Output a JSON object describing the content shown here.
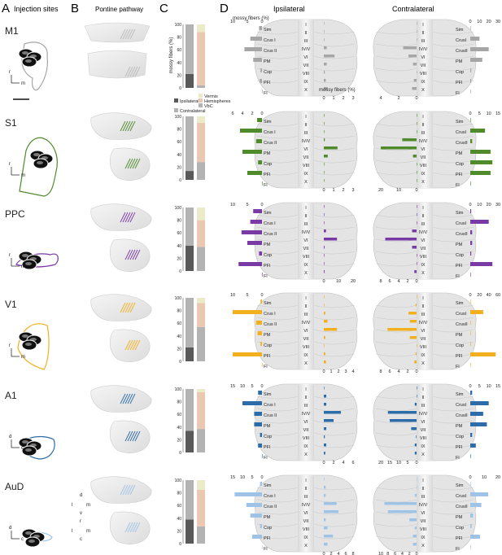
{
  "panel_letters": {
    "a": "A",
    "b": "B",
    "c": "C",
    "d": "D"
  },
  "column_titles": {
    "injection": "Injection sites",
    "pontine": "Pontine pathway",
    "ipsilateral": "Ipsilateral",
    "contralateral": "Contralateral"
  },
  "orientation": {
    "r": "r",
    "m": "m",
    "d": "d",
    "c": "c",
    "l": "l",
    "v": "v"
  },
  "rows": [
    {
      "label": "M1",
      "color": "#a6a6a6"
    },
    {
      "label": "S1",
      "color": "#4f8a2b"
    },
    {
      "label": "PPC",
      "color": "#7a3aa6"
    },
    {
      "label": "V1",
      "color": "#f2b01e"
    },
    {
      "label": "A1",
      "color": "#2c6ca8"
    },
    {
      "label": "AuD",
      "color": "#9fc3e6"
    }
  ],
  "stack_colors": {
    "ipsilateral": "#595959",
    "contralateral": "#b3b3b3",
    "vermis": "#ecebc9",
    "hemispheres": "#ebc8b2",
    "vbc": "#b3b3b3"
  },
  "panel_c": {
    "ylabel": "mossy fibers (%)",
    "ticks": [
      "0",
      "20",
      "40",
      "60",
      "80",
      "100"
    ],
    "legend": [
      "Ipsilateral",
      "Contralateral",
      "Vermis",
      "Hemispheres",
      "VbC"
    ]
  },
  "lobules": [
    "I",
    "II",
    "III",
    "IV/V",
    "VI",
    "VII",
    "VIII",
    "IX",
    "X"
  ],
  "hemi_labels": [
    "Sim",
    "Crus I",
    "Crus II",
    "PM",
    "Cop",
    "PFl",
    "Fl"
  ],
  "hemi_labels_contra": [
    "Sim",
    "CrusI",
    "CrusII",
    "PM",
    "Cop",
    "PFl",
    "Fl"
  ],
  "axis_label_top": "mossy fibers (%)",
  "axis_label_bottom": "mossy fibers (%)",
  "axes": {
    "ipsi_hemi_ticks": [
      [
        "10",
        "5",
        "0"
      ],
      [
        "6",
        "4",
        "2",
        "0"
      ],
      [
        "10",
        "5",
        "0"
      ],
      [
        "10",
        "5",
        "0"
      ],
      [
        "15",
        "10",
        "5",
        "0"
      ],
      [
        "15",
        "10",
        "5",
        "0"
      ]
    ],
    "ipsi_verm_ticks": [
      [
        "0",
        "1",
        "2",
        "3"
      ],
      [
        "0",
        "1",
        "2",
        "3"
      ],
      [
        "0",
        "10",
        "20"
      ],
      [
        "0",
        "1",
        "2",
        "3",
        "4"
      ],
      [
        "0",
        "2",
        "4",
        "6"
      ],
      [
        "0",
        "2",
        "4",
        "6",
        "8"
      ]
    ],
    "contra_verm_ticks": [
      [
        "4",
        "2",
        "0"
      ],
      [
        "20",
        "10",
        "0"
      ],
      [
        "8",
        "6",
        "4",
        "2",
        "0"
      ],
      [
        "8",
        "6",
        "4",
        "2",
        "0"
      ],
      [
        "20",
        "15",
        "10",
        "5",
        "0"
      ],
      [
        "10",
        "8",
        "6",
        "4",
        "2",
        "0"
      ]
    ],
    "contra_hemi_ticks": [
      [
        "0",
        "10",
        "20",
        "30"
      ],
      [
        "0",
        "5",
        "10",
        "15"
      ],
      [
        "0",
        "10",
        "20",
        "30"
      ],
      [
        "0",
        "20",
        "40",
        "60"
      ],
      [
        "0",
        "5",
        "10",
        "15"
      ],
      [
        "0",
        "10",
        "20"
      ]
    ]
  },
  "chart_data": [
    {
      "type": "bar",
      "title": "M1",
      "stack_ipsi_contra": [
        22,
        78
      ],
      "stack_regions": [
        12,
        84,
        4
      ],
      "ipsi_hemi": [
        1,
        4,
        6,
        3,
        0.5,
        0.8,
        0
      ],
      "ipsi_verm": [
        0,
        0,
        0,
        0.3,
        1.1,
        0.3,
        0.1,
        0.2,
        0.4
      ],
      "contra_verm": [
        0,
        0,
        0,
        1.5,
        0.9,
        0.4,
        0,
        0.3,
        0.5
      ],
      "contra_hemi": [
        0,
        10,
        20,
        13,
        1,
        1,
        0
      ]
    },
    {
      "type": "bar",
      "title": "S1",
      "stack_ipsi_contra": [
        14,
        86
      ],
      "stack_regions": [
        10,
        62,
        28
      ],
      "ipsi_hemi": [
        1,
        4.5,
        1.2,
        4,
        0.8,
        3,
        0
      ],
      "ipsi_verm": [
        0,
        0,
        0,
        0.1,
        1.4,
        0.4,
        0,
        0,
        0
      ],
      "contra_verm": [
        0,
        0,
        0,
        8,
        22,
        2,
        0,
        0,
        0
      ],
      "contra_hemi": [
        0,
        8,
        1,
        11,
        12,
        11,
        0
      ]
    },
    {
      "type": "bar",
      "title": "PPC",
      "stack_ipsi_contra": [
        40,
        60
      ],
      "stack_regions": [
        20,
        42,
        38
      ],
      "ipsi_hemi": [
        3,
        4,
        7,
        5,
        1,
        8,
        0
      ],
      "ipsi_verm": [
        0,
        0,
        0,
        1.5,
        9,
        0.5,
        0,
        0,
        0.5
      ],
      "contra_verm": [
        0,
        0,
        0,
        1,
        7,
        1,
        0,
        0,
        0.5
      ],
      "contra_hemi": [
        1,
        20,
        2,
        2,
        1,
        24,
        0
      ]
    },
    {
      "type": "bar",
      "title": "V1",
      "stack_ipsi_contra": [
        22,
        78
      ],
      "stack_regions": [
        8,
        38,
        54
      ],
      "ipsi_hemi": [
        0.5,
        10,
        2,
        1.5,
        0.5,
        11,
        0
      ],
      "ipsi_verm": [
        0,
        0,
        0.2,
        0.5,
        1.8,
        0.2,
        0,
        0.2,
        0.3
      ],
      "contra_verm": [
        0,
        0.2,
        1.8,
        1.5,
        6.5,
        1.5,
        0,
        0.2,
        0.5
      ],
      "contra_hemi": [
        0,
        28,
        0,
        1,
        1,
        55,
        0
      ]
    },
    {
      "type": "bar",
      "title": "A1",
      "stack_ipsi_contra": [
        34,
        66
      ],
      "stack_regions": [
        5,
        58,
        37
      ],
      "ipsi_hemi": [
        2,
        10,
        4,
        4,
        1,
        2,
        0
      ],
      "ipsi_verm": [
        0,
        0.5,
        0.5,
        3.5,
        2,
        0.5,
        0.2,
        0.5,
        0.3
      ],
      "contra_verm": [
        0,
        0,
        1,
        16,
        15,
        3,
        0.3,
        1,
        1
      ],
      "contra_hemi": [
        1,
        10,
        7,
        9,
        1,
        3,
        0
      ]
    },
    {
      "type": "bar",
      "title": "AuD",
      "stack_ipsi_contra": [
        38,
        62
      ],
      "stack_regions": [
        15,
        58,
        27
      ],
      "ipsi_hemi": [
        1,
        14,
        8,
        6,
        1,
        5,
        0
      ],
      "ipsi_verm": [
        0,
        0.5,
        0.5,
        3.5,
        4,
        0.5,
        1,
        2.5,
        1
      ],
      "contra_verm": [
        0,
        0,
        0.5,
        9,
        8,
        2,
        0.5,
        1,
        1
      ],
      "contra_hemi": [
        0,
        13,
        8,
        2,
        1,
        7,
        0
      ]
    }
  ]
}
